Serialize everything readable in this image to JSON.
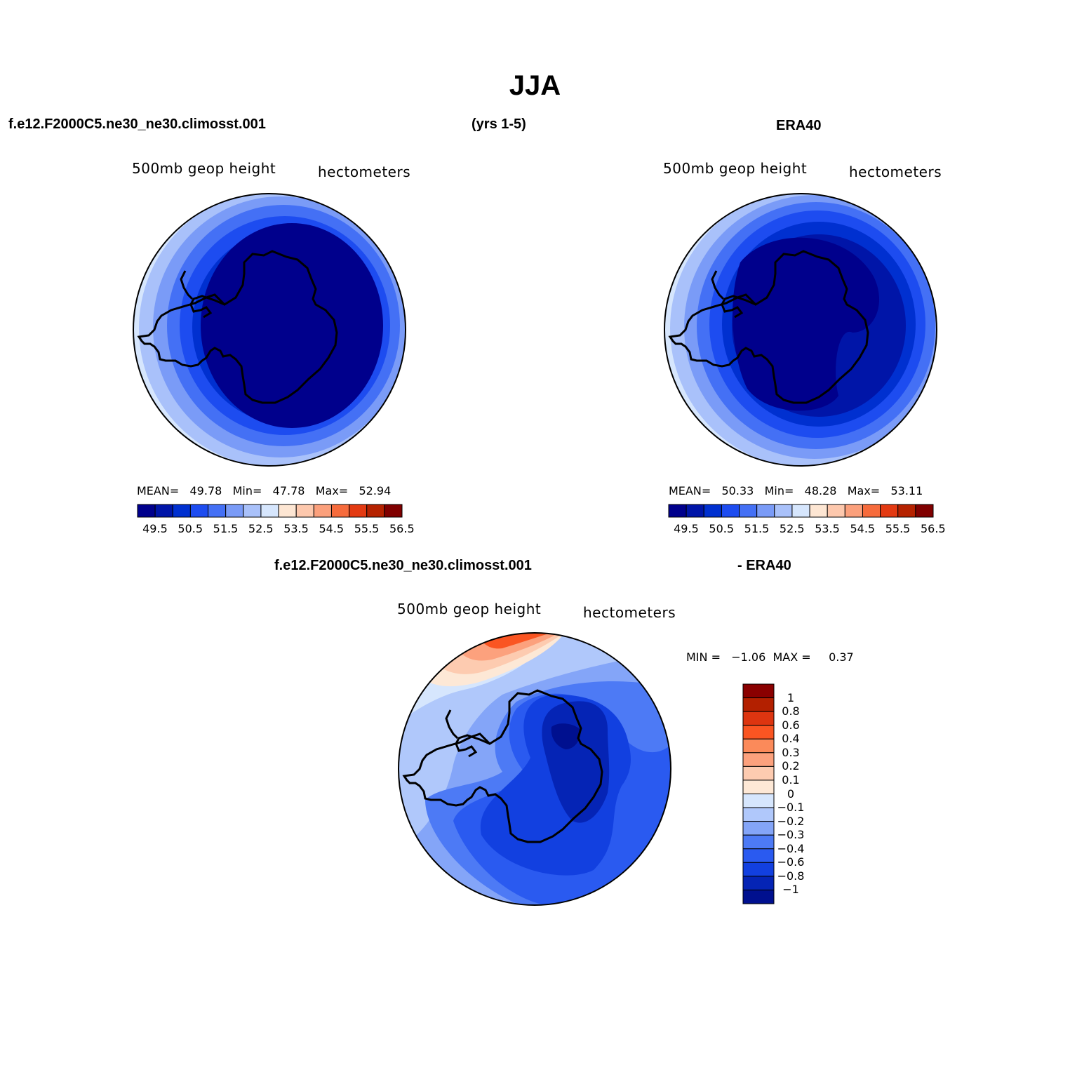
{
  "title": "JJA",
  "top_left": {
    "case_name": "f.e12.F2000C5.ne30_ne30.climosst.001",
    "years": "(yrs 1-5)",
    "field": "500mb geop height",
    "units": "hectometers",
    "stats": {
      "mean_label": "MEAN=",
      "mean": "49.78",
      "min_label": "Min=",
      "min": "47.78",
      "max_label": "Max=",
      "max": "52.94"
    }
  },
  "top_right": {
    "case_name": "ERA40",
    "field": "500mb geop height",
    "units": "hectometers",
    "stats": {
      "mean_label": "MEAN=",
      "mean": "50.33",
      "min_label": "Min=",
      "min": "48.28",
      "max_label": "Max=",
      "max": "53.11"
    }
  },
  "bottom": {
    "case_name": "f.e12.F2000C5.ne30_ne30.climosst.001",
    "minus_label": "- ERA40",
    "field": "500mb geop height",
    "units": "hectometers",
    "stats_label": "MIN =   −1.06  MAX =     0.37"
  },
  "colorbar_horizontal": {
    "colors": [
      "#00008c",
      "#0015a8",
      "#0030d0",
      "#1d4cf0",
      "#4470f5",
      "#7a9bf7",
      "#a9c1fa",
      "#d6e6fd",
      "#fde6d3",
      "#fdc8ad",
      "#fba07c",
      "#f66b3c",
      "#e33a12",
      "#b52200",
      "#800000"
    ],
    "tick_labels": [
      "49.5",
      "50.5",
      "51.5",
      "52.5",
      "53.5",
      "54.5",
      "55.5",
      "56.5"
    ]
  },
  "colorbar_vertical": {
    "colors_top_to_bottom": [
      "#8a0000",
      "#b32000",
      "#dd3510",
      "#fa5522",
      "#fb8a5a",
      "#fca17d",
      "#fdcbb0",
      "#fde8d6",
      "#d6e6fd",
      "#b0c8fb",
      "#84a5f8",
      "#4d7af5",
      "#2a5af0",
      "#1240e0",
      "#0524b5",
      "#00108f"
    ],
    "tick_labels": [
      "1",
      "0.8",
      "0.6",
      "0.4",
      "0.3",
      "0.2",
      "0.1",
      "0",
      "−0.1",
      "−0.2",
      "−0.3",
      "−0.4",
      "−0.6",
      "−0.8",
      "−1"
    ]
  }
}
